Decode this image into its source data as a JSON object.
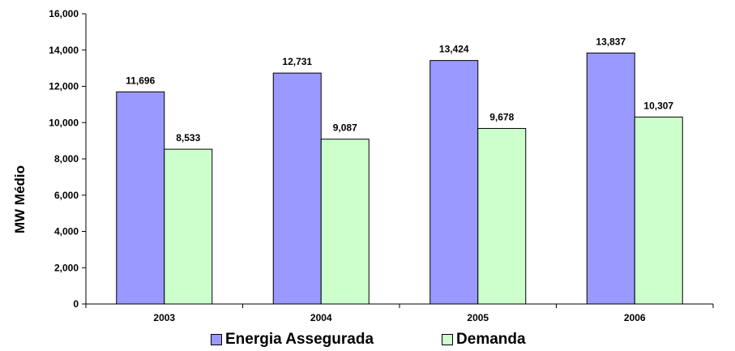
{
  "chart_data": {
    "type": "bar",
    "categories": [
      "2003",
      "2004",
      "2005",
      "2006"
    ],
    "series": [
      {
        "name": "Energia Assegurada",
        "values": [
          11696,
          12731,
          13424,
          13837
        ],
        "color": "#9999ff"
      },
      {
        "name": "Demanda",
        "values": [
          8533,
          9087,
          9678,
          10307
        ],
        "color": "#ccffcc"
      }
    ],
    "data_labels": [
      [
        "11,696",
        "12,731",
        "13,424",
        "13,837"
      ],
      [
        "8,533",
        "9,087",
        "9,678",
        "10,307"
      ]
    ],
    "y_ticks": [
      "0",
      "2,000",
      "4,000",
      "6,000",
      "8,000",
      "10,000",
      "12,000",
      "14,000",
      "16,000"
    ],
    "ylabel": "MW Médio",
    "ylim": [
      0,
      16000
    ],
    "grid": false,
    "legend_position": "bottom"
  }
}
